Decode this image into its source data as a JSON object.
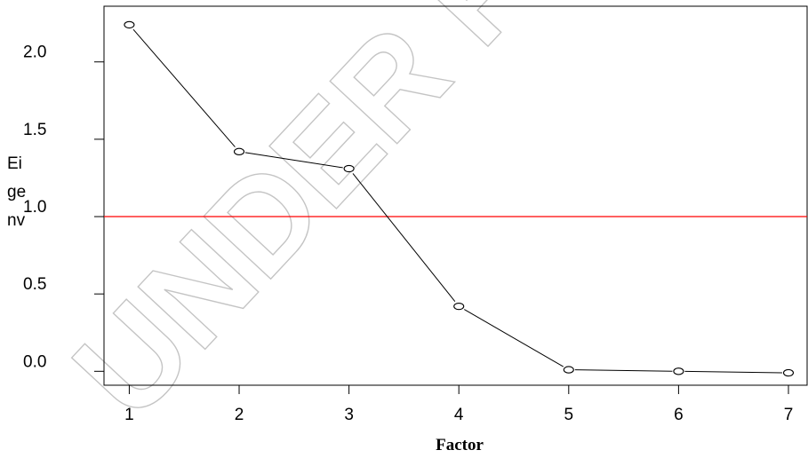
{
  "watermark": "UNDER PEER REVIEW",
  "chart_data": {
    "type": "line",
    "title": "",
    "xlabel": "Factor",
    "ylabel_lines": [
      "Ei",
      "ge",
      "nv"
    ],
    "x": [
      1,
      2,
      3,
      4,
      5,
      6,
      7
    ],
    "y": [
      2.24,
      1.42,
      1.31,
      0.42,
      0.01,
      0.0,
      -0.01
    ],
    "xticks": [
      1,
      2,
      3,
      4,
      5,
      6,
      7
    ],
    "xtick_labels": [
      "1",
      "2",
      "3",
      "4",
      "5",
      "6",
      "7"
    ],
    "yticks": [
      0.0,
      0.5,
      1.0,
      1.5,
      2.0
    ],
    "ytick_labels": [
      "0.0",
      "0.5",
      "1.0",
      "1.5",
      "2.0"
    ],
    "xlim": [
      0.77,
      7.17
    ],
    "ylim": [
      -0.09,
      2.36
    ],
    "reference_line": {
      "y": 1.0,
      "color": "#ff0000"
    },
    "line_color": "#000000",
    "marker": "open-circle",
    "grid": false,
    "legend": "none"
  }
}
